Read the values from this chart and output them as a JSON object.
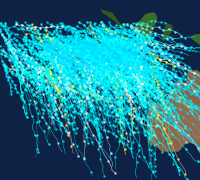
{
  "figsize": [
    2.0,
    1.8
  ],
  "dpi": 100,
  "bg_ocean_deep": "#0a1828",
  "bg_ocean_mid": "#0d2240",
  "bg_land_australia": "#8B6347",
  "bg_land_australia2": "#7a5535",
  "bg_land_indonesia": "#2d5a22",
  "bg_land_indo2": "#3a6b2a",
  "track_colors": [
    "#00ffff",
    "#00e8ff",
    "#00d4ff",
    "#40e0d0",
    "#80ffff",
    "#ffffff",
    "#ffff44",
    "#ffe066",
    "#aaffff"
  ],
  "track_alpha_range": [
    0.45,
    0.95
  ],
  "n_tracks_main": 350,
  "n_tracks_extra": 120,
  "lon_min": 55,
  "lon_max": 135,
  "lat_min": -42,
  "lat_max": 8,
  "seed": 17
}
